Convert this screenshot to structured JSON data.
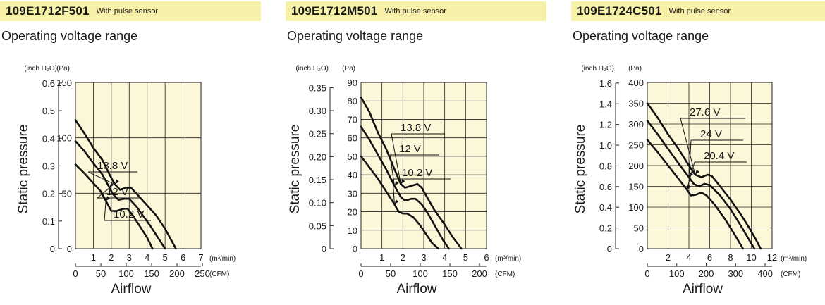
{
  "colors": {
    "header_bg": "#f7f0a8",
    "plot_bg": "#fdf7da",
    "grid": "#222222",
    "curve": "#111111"
  },
  "panels": [
    {
      "model": "109E1712F501",
      "sensor": "With pulse sensor",
      "subtitle": "Operating voltage range",
      "chart_data": {
        "type": "line",
        "title": "",
        "xlabel": "Airflow",
        "ylabel": "Static pressure",
        "x_unit": "(m³/min)",
        "x2_unit": "(CFM)",
        "y_unit": "(Pa)",
        "y2_unit": "(inch H₂O)",
        "xlim": [
          0,
          7
        ],
        "ylim": [
          0,
          150
        ],
        "grid": true,
        "x_ticks": [
          0,
          1,
          2,
          3,
          4,
          5,
          6,
          7
        ],
        "y_ticks": [
          0,
          50,
          100,
          150
        ],
        "x2_ticks": [
          0,
          50,
          100,
          150,
          200,
          250
        ],
        "x2_per_x": 35.31,
        "y2_ticks": [
          "0",
          "0.1",
          "0.2",
          "0.3",
          "0.4",
          "0.5",
          "0.6"
        ],
        "y2_per_y": 0.004015,
        "series": [
          {
            "name": "13.8 V",
            "x": [
              0,
              0.5,
              1.0,
              1.5,
              1.9,
              2.2,
              2.5,
              2.8,
              3.1,
              3.5,
              4.0,
              4.5,
              5.0,
              5.3,
              5.6
            ],
            "y": [
              116,
              104,
              91,
              80,
              67,
              58,
              53,
              55,
              55,
              48,
              39,
              30,
              18,
              9,
              0
            ]
          },
          {
            "name": "12 V",
            "x": [
              0,
              0.5,
              1.0,
              1.5,
              1.9,
              2.1,
              2.4,
              2.7,
              3.0,
              3.4,
              3.8,
              4.2,
              4.6,
              5.0
            ],
            "y": [
              97,
              88,
              77,
              67,
              55,
              49,
              44,
              45,
              45,
              38,
              29,
              20,
              10,
              0
            ]
          },
          {
            "name": "10.2 V",
            "x": [
              0,
              0.5,
              1.0,
              1.4,
              1.7,
              2.0,
              2.3,
              2.7,
              2.9,
              3.2,
              3.6,
              4.0,
              4.3
            ],
            "y": [
              76,
              68,
              59,
              52,
              43,
              34,
              34,
              36,
              36,
              30,
              20,
              10,
              0
            ]
          }
        ]
      }
    },
    {
      "model": "109E1712M501",
      "sensor": "With pulse sensor",
      "subtitle": "Operating voltage range",
      "chart_data": {
        "type": "line",
        "title": "",
        "xlabel": "Airflow",
        "ylabel": "Static pressure",
        "x_unit": "(m³/min)",
        "x2_unit": "(CFM)",
        "y_unit": "(Pa)",
        "y2_unit": "(inch H₂O)",
        "xlim": [
          0,
          6
        ],
        "ylim": [
          0,
          90
        ],
        "grid": true,
        "x_ticks": [
          0,
          1,
          2,
          3,
          4,
          5,
          6
        ],
        "y_ticks": [
          0,
          10,
          20,
          30,
          40,
          50,
          60,
          70,
          80,
          90
        ],
        "x2_ticks": [
          0,
          50,
          100,
          150,
          200
        ],
        "x2_per_x": 35.31,
        "y2_ticks": [
          "0",
          "0.05",
          "0.10",
          "0.15",
          "0.20",
          "0.25",
          "0.30",
          "0.35"
        ],
        "y2_per_y": 0.004015,
        "series": [
          {
            "name": "13.8 V",
            "x": [
              0,
              0.4,
              0.8,
              1.2,
              1.6,
              1.9,
              2.1,
              2.4,
              2.7,
              2.9,
              3.2,
              3.5,
              4.0,
              4.4,
              4.8
            ],
            "y": [
              82,
              74,
              63,
              54,
              43,
              35,
              33,
              34,
              35,
              33,
              27,
              21,
              13,
              6,
              0
            ]
          },
          {
            "name": "12 V",
            "x": [
              0,
              0.4,
              0.8,
              1.2,
              1.6,
              1.9,
              2.1,
              2.4,
              2.6,
              2.9,
              3.2,
              3.6,
              3.9,
              4.2
            ],
            "y": [
              66,
              59,
              51,
              43,
              34,
              28,
              26,
              27,
              27,
              24,
              19,
              11,
              5,
              0
            ]
          },
          {
            "name": "10.2 V",
            "x": [
              0,
              0.4,
              0.8,
              1.2,
              1.6,
              1.8,
              2.0,
              2.2,
              2.5,
              2.8,
              3.1,
              3.4,
              3.7
            ],
            "y": [
              50,
              44,
              38,
              31,
              24,
              20,
              19,
              19,
              17,
              13,
              8,
              3,
              0
            ]
          }
        ]
      }
    },
    {
      "model": "109E1724C501",
      "sensor": "With pulse sensor",
      "subtitle": "Operating voltage range",
      "chart_data": {
        "type": "line",
        "title": "",
        "xlabel": "Airflow",
        "ylabel": "Static pressure",
        "x_unit": "(m³/min)",
        "x2_unit": "(CFM)",
        "y_unit": "(Pa)",
        "y2_unit": "(inch H₂O)",
        "xlim": [
          0,
          12
        ],
        "ylim": [
          0,
          400
        ],
        "grid": true,
        "x_ticks": [
          0,
          2,
          4,
          6,
          8,
          10,
          12
        ],
        "y_ticks": [
          0,
          50,
          100,
          150,
          200,
          250,
          300,
          350,
          400
        ],
        "x2_ticks": [
          0,
          100,
          200,
          300,
          400
        ],
        "x2_per_x": 35.31,
        "y2_ticks": [
          "0",
          "0.2",
          "0.4",
          "0.6",
          "0.8",
          "1.0",
          "1.2",
          "1.4",
          "1.6"
        ],
        "y2_per_y": 0.004015,
        "series": [
          {
            "name": "27.6 V",
            "x": [
              0,
              1,
              2,
              3,
              4,
              4.6,
              5.2,
              5.8,
              6.2,
              7,
              8,
              9,
              9.8,
              10.4,
              10.9
            ],
            "y": [
              350,
              315,
              275,
              240,
              200,
              178,
              172,
              178,
              175,
              150,
              118,
              82,
              50,
              24,
              0
            ]
          },
          {
            "name": "24 V",
            "x": [
              0,
              1,
              2,
              3,
              4,
              4.5,
              5,
              5.5,
              6,
              7,
              8,
              9,
              9.7,
              10.3
            ],
            "y": [
              308,
              275,
              240,
              205,
              172,
              155,
              150,
              156,
              153,
              128,
              95,
              55,
              25,
              0
            ]
          },
          {
            "name": "20.4 V",
            "x": [
              0,
              1,
              2,
              3,
              3.8,
              4.2,
              4.7,
              5.2,
              5.7,
              6.5,
              7.5,
              8.3,
              9.2
            ],
            "y": [
              262,
              232,
              200,
              168,
              142,
              128,
              130,
              135,
              128,
              105,
              70,
              38,
              0
            ]
          }
        ]
      }
    }
  ]
}
